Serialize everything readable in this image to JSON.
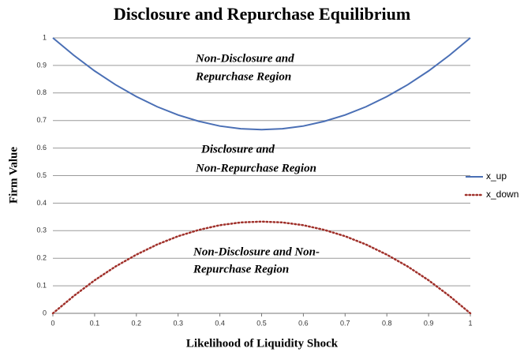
{
  "chart_data": {
    "type": "line",
    "title": "Disclosure and Repurchase Equilibrium",
    "x_label": "Likelihood of Liquidity Shock",
    "y_label": "Firm Value",
    "annotations": [
      [
        "Non-Disclosure and",
        "Repurchase Region"
      ],
      [
        "Disclosure and",
        "Non-Repurchase Region"
      ],
      [
        "Non-Disclosure and Non-",
        "Repurchase Region"
      ]
    ],
    "x": [
      0,
      0.05,
      0.1,
      0.15,
      0.2,
      0.25,
      0.3,
      0.35,
      0.4,
      0.45,
      0.5,
      0.55,
      0.6,
      0.65,
      0.7,
      0.75,
      0.8,
      0.85,
      0.9,
      0.95,
      1
    ],
    "series": [
      {
        "name": "x_up",
        "color": "#4a6fb5",
        "dash": false,
        "values": [
          1,
          0.937,
          0.88,
          0.83,
          0.787,
          0.75,
          0.72,
          0.697,
          0.68,
          0.67,
          0.667,
          0.67,
          0.68,
          0.697,
          0.72,
          0.75,
          0.787,
          0.83,
          0.88,
          0.937,
          1
        ]
      },
      {
        "name": "x_down",
        "color": "#a0302a",
        "dash": true,
        "values": [
          0,
          0.063,
          0.12,
          0.17,
          0.213,
          0.25,
          0.28,
          0.303,
          0.32,
          0.33,
          0.333,
          0.33,
          0.32,
          0.303,
          0.28,
          0.25,
          0.213,
          0.17,
          0.12,
          0.063,
          0
        ]
      }
    ],
    "xlim": [
      0,
      1
    ],
    "ylim": [
      0,
      1
    ],
    "xticks": [
      0,
      0.1,
      0.2,
      0.3,
      0.4,
      0.5,
      0.6,
      0.7,
      0.8,
      0.9,
      1
    ],
    "yticks": [
      0,
      0.1,
      0.2,
      0.3,
      0.4,
      0.5,
      0.6,
      0.7,
      0.8,
      0.9,
      1
    ],
    "grid": true,
    "legend": "right"
  }
}
